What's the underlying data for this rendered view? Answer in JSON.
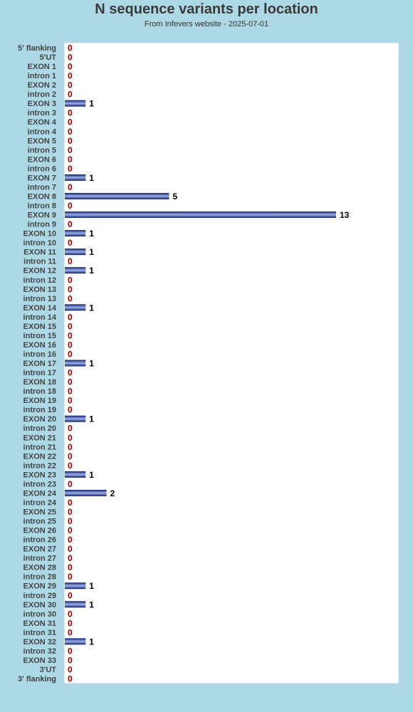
{
  "chart_data": {
    "type": "bar",
    "orientation": "horizontal",
    "title": "N sequence variants per location",
    "subtitle": "From Infevers website - 2025-07-01",
    "categories": [
      "5' flanking",
      "5'UT",
      "EXON 1",
      "intron 1",
      "EXON 2",
      "intron 2",
      "EXON 3",
      "intron 3",
      "EXON 4",
      "intron 4",
      "EXON 5",
      "intron 5",
      "EXON 6",
      "intron 6",
      "EXON 7",
      "intron 7",
      "EXON 8",
      "intron 8",
      "EXON 9",
      "intron 9",
      "EXON 10",
      "intron 10",
      "EXON 11",
      "intron 11",
      "EXON 12",
      "intron 12",
      "EXON 13",
      "intron 13",
      "EXON 14",
      "intron 14",
      "EXON 15",
      "intron 15",
      "EXON 16",
      "intron 16",
      "EXON 17",
      "intron 17",
      "EXON 18",
      "intron 18",
      "EXON 19",
      "intron 19",
      "EXON 20",
      "intron 20",
      "EXON 21",
      "intron 21",
      "EXON 22",
      "intron 22",
      "EXON 23",
      "intron 23",
      "EXON 24",
      "intron 24",
      "EXON 25",
      "intron 25",
      "EXON 26",
      "intron 26",
      "EXON 27",
      "intron 27",
      "EXON 28",
      "intron 28",
      "EXON 29",
      "intron 29",
      "EXON 30",
      "intron 30",
      "EXON 31",
      "intron 31",
      "EXON 32",
      "intron 32",
      "EXON 33",
      "3'UT",
      "3' flanking"
    ],
    "values": [
      0,
      0,
      0,
      0,
      0,
      0,
      1,
      0,
      0,
      0,
      0,
      0,
      0,
      0,
      1,
      0,
      5,
      0,
      13,
      0,
      1,
      0,
      1,
      0,
      1,
      0,
      0,
      0,
      1,
      0,
      0,
      0,
      0,
      0,
      1,
      0,
      0,
      0,
      0,
      0,
      1,
      0,
      0,
      0,
      0,
      0,
      1,
      0,
      2,
      0,
      0,
      0,
      0,
      0,
      0,
      0,
      0,
      0,
      1,
      0,
      1,
      0,
      0,
      0,
      1,
      0,
      0,
      0,
      0
    ],
    "xlim": [
      0,
      13
    ],
    "grid": false,
    "legend": "none",
    "colors": {
      "background": "#add8e6",
      "plot_background": "#ffffff",
      "bar_dark": "#0b1f6e",
      "bar_light": "#9fb0e6",
      "zero_label": "#8b0000",
      "value_label": "#000000"
    }
  }
}
